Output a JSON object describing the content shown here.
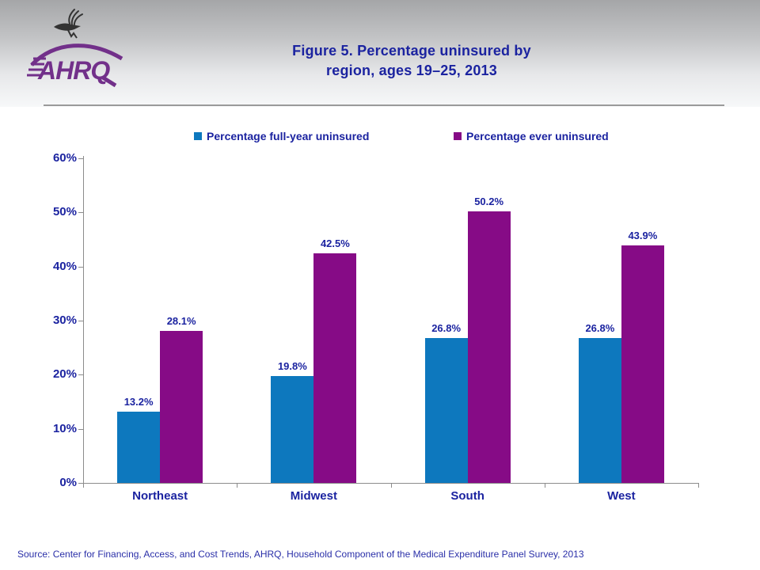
{
  "colors": {
    "text_blue": "#1b23a0",
    "title_blue": "#1b23a0",
    "source_blue": "#2a2fa8",
    "axis_gray": "#8c8c8c",
    "logo_purple": "#72308a",
    "eagle_dark": "#333333",
    "series_blue": "#0d78be",
    "series_purple": "#860b86"
  },
  "header": {
    "logo_text": "AHRQ",
    "title_line1": "Figure 5. Percentage uninsured by",
    "title_line2": "region, ages 19–25, 2013"
  },
  "chart_data": {
    "type": "bar",
    "title": "Figure 5. Percentage uninsured by region, ages 19–25, 2013",
    "categories": [
      "Northeast",
      "Midwest",
      "South",
      "West"
    ],
    "series": [
      {
        "name": "Percentage full-year uninsured",
        "color": "#0d78be",
        "values": [
          13.2,
          19.8,
          26.8,
          26.8
        ],
        "labels": [
          "13.2%",
          "19.8%",
          "26.8%",
          "26.8%"
        ]
      },
      {
        "name": "Percentage ever uninsured",
        "color": "#860b86",
        "values": [
          28.1,
          42.5,
          50.2,
          43.9
        ],
        "labels": [
          "28.1%",
          "42.5%",
          "50.2%",
          "43.9%"
        ]
      }
    ],
    "xlabel": "",
    "ylabel": "",
    "ylim": [
      0,
      60
    ],
    "ytick_step": 10,
    "yticks": [
      "0%",
      "10%",
      "20%",
      "30%",
      "40%",
      "50%",
      "60%"
    ],
    "grid": false,
    "legend_position": "top",
    "data_labels_shown": true
  },
  "footer": {
    "source": "Source: Center for Financing, Access, and Cost Trends, AHRQ, Household Component of the Medical Expenditure Panel Survey,  2013"
  }
}
